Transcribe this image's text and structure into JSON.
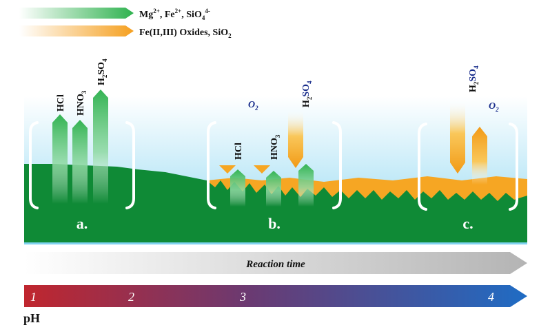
{
  "legend": {
    "ions": {
      "parts": [
        "Mg",
        "2+",
        ", Fe",
        "2+",
        ", SiO",
        "4",
        "4-"
      ],
      "color": "#2fb24f"
    },
    "oxides": {
      "parts": [
        "Fe(II,III) Oxides, SiO",
        "2"
      ],
      "color": "#f5a020"
    }
  },
  "acids": {
    "hcl": "HCl",
    "hno3": {
      "base": "HNO",
      "sub": "3"
    },
    "h2so4": {
      "h": "H",
      "sub": "2",
      "rest": "SO",
      "sub2": "4"
    }
  },
  "oxygen": {
    "o": "O",
    "sub": "2"
  },
  "stages": {
    "a": "a.",
    "b": "b.",
    "c": "c."
  },
  "reaction_time": "Reaction time",
  "ph": {
    "label": "pH",
    "ticks": [
      "1",
      "2",
      "3",
      "4"
    ]
  },
  "colors": {
    "green": "#0f8a36",
    "green_light": "#46c46a",
    "orange": "#f6a623",
    "water_top": "#ffffff",
    "water_bottom": "#7fd2f0",
    "acid_red": "#c0262e",
    "base_blue": "#1f6cc4",
    "navy_text": "#1a2e8c"
  }
}
